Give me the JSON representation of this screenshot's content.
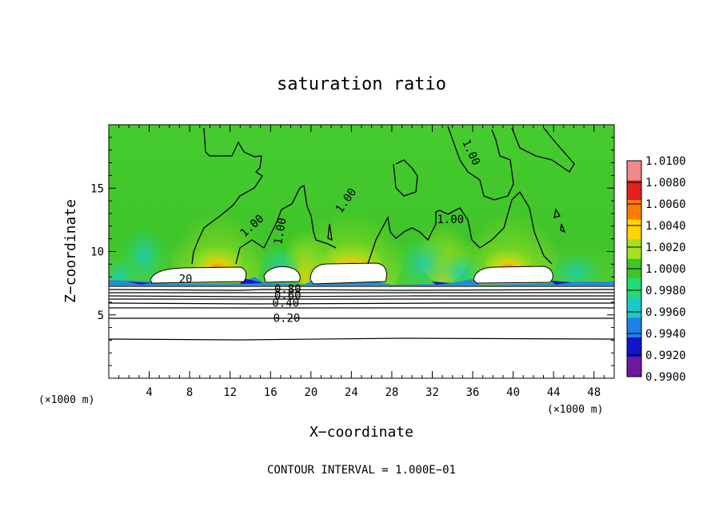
{
  "chart_data": {
    "type": "heatmap",
    "title": "saturation ratio",
    "xlabel": "X−coordinate",
    "ylabel": "Z−coordinate",
    "x_unit_left": "(×1000 m)",
    "x_unit_right": "(×1000 m)",
    "footer": "CONTOUR INTERVAL = 1.000E−01",
    "xlim": [
      0,
      50
    ],
    "ylim": [
      0,
      20
    ],
    "xticks": [
      4,
      8,
      12,
      16,
      20,
      24,
      28,
      32,
      36,
      40,
      44,
      48
    ],
    "yticks": [
      5,
      10,
      15
    ],
    "colorbar": {
      "levels": [
        "1.0100",
        "1.0080",
        "1.0060",
        "1.0040",
        "1.0020",
        "1.0000",
        "0.9980",
        "0.9960",
        "0.9940",
        "0.9920",
        "0.9900"
      ],
      "bands": [
        "#f08a8a",
        "#e41f1f",
        "#ff7a00",
        "#ffd400",
        "#a6e11c",
        "#3fc42a",
        "#1fdd72",
        "#19c9c9",
        "#1d82e6",
        "#1414c8",
        "#6a1aa0"
      ],
      "range": [
        0.99,
        1.01
      ]
    },
    "contour_labels": [
      {
        "text": "1.00",
        "x": 23.5,
        "z": 14.0,
        "angle": -55
      },
      {
        "text": "1.00",
        "x": 14.2,
        "z": 12.0,
        "angle": -42
      },
      {
        "text": "1.00",
        "x": 17.0,
        "z": 11.6,
        "angle": -80
      },
      {
        "text": "1.00",
        "x": 33.8,
        "z": 12.5,
        "angle": 0
      },
      {
        "text": "1.00",
        "x": 35.8,
        "z": 17.8,
        "angle": 65
      },
      {
        "text": "20",
        "x": 7.6,
        "z": 7.8,
        "angle": 0
      },
      {
        "text": "0.80",
        "x": 17.7,
        "z": 7.0,
        "angle": 0
      },
      {
        "text": "0.60",
        "x": 17.7,
        "z": 6.5,
        "angle": 0
      },
      {
        "text": "0.40",
        "x": 17.5,
        "z": 5.9,
        "angle": 0
      },
      {
        "text": "0.20",
        "x": 17.6,
        "z": 4.7,
        "angle": 0
      }
    ],
    "grid": false
  }
}
